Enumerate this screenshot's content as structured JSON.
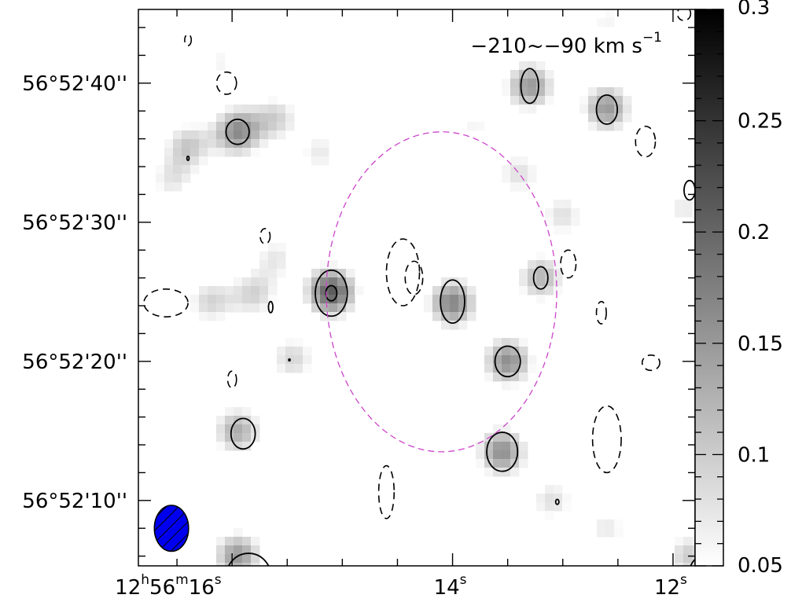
{
  "chart_data": {
    "type": "heatmap",
    "title": "",
    "velocity_label": "−210~−90 km s",
    "velocity_unit_exp": "−1",
    "axes": {
      "ra": {
        "ticks": [
          {
            "value": 16,
            "h": "12",
            "m": "56",
            "s": "16",
            "full": true
          },
          {
            "value": 14,
            "s": "14",
            "full": false
          },
          {
            "value": 12,
            "s": "12",
            "full": false
          }
        ],
        "range": [
          16.85,
          11.8
        ]
      },
      "dec": {
        "ticks": [
          {
            "value": 40,
            "label": "56°52'40''"
          },
          {
            "value": 30,
            "label": "56°52'30''"
          },
          {
            "value": 20,
            "label": "56°52'20''"
          },
          {
            "value": 10,
            "label": "56°52'10''"
          }
        ],
        "range": [
          5.3,
          45.3
        ]
      }
    },
    "colorbar": {
      "ticks": [
        {
          "value": 0.3,
          "label": "0.3"
        },
        {
          "value": 0.25,
          "label": "0.25"
        },
        {
          "value": 0.2,
          "label": "0.2"
        },
        {
          "value": 0.15,
          "label": "0.15"
        },
        {
          "value": 0.1,
          "label": "0.1"
        },
        {
          "value": 0.05,
          "label": "0.05"
        }
      ],
      "range": [
        0.05,
        0.3
      ]
    },
    "emission_peaks": [
      {
        "ra": 15.95,
        "dec": 36.5,
        "peak": 0.16
      },
      {
        "ra": 16.4,
        "dec": 35.5,
        "peak": 0.1
      },
      {
        "ra": 15.6,
        "dec": 37.5,
        "peak": 0.09
      },
      {
        "ra": 15.1,
        "dec": 25.0,
        "peak": 0.21
      },
      {
        "ra": 14.0,
        "dec": 24.2,
        "peak": 0.17
      },
      {
        "ra": 13.5,
        "dec": 20.0,
        "peak": 0.16
      },
      {
        "ra": 13.3,
        "dec": 39.8,
        "peak": 0.15
      },
      {
        "ra": 12.6,
        "dec": 38.2,
        "peak": 0.15
      },
      {
        "ra": 13.2,
        "dec": 26.0,
        "peak": 0.12
      },
      {
        "ra": 13.55,
        "dec": 13.5,
        "peak": 0.16
      },
      {
        "ra": 15.95,
        "dec": 15.0,
        "peak": 0.13
      },
      {
        "ra": 15.95,
        "dec": 6.0,
        "peak": 0.15
      },
      {
        "ra": 11.85,
        "dec": 6.0,
        "peak": 0.1
      },
      {
        "ra": 16.2,
        "dec": 24.3,
        "peak": 0.09
      },
      {
        "ra": 15.8,
        "dec": 24.8,
        "peak": 0.09
      },
      {
        "ra": 15.45,
        "dec": 20.2,
        "peak": 0.09
      },
      {
        "ra": 15.6,
        "dec": 27.5,
        "peak": 0.07
      },
      {
        "ra": 13.4,
        "dec": 33.5,
        "peak": 0.08
      },
      {
        "ra": 13.0,
        "dec": 30.5,
        "peak": 0.08
      },
      {
        "ra": 13.1,
        "dec": 10.0,
        "peak": 0.08
      },
      {
        "ra": 12.6,
        "dec": 8.0,
        "peak": 0.07
      },
      {
        "ra": 13.8,
        "dec": 37.0,
        "peak": 0.06
      },
      {
        "ra": 11.9,
        "dec": 31.0,
        "peak": 0.07
      },
      {
        "ra": 12.6,
        "dec": 44.5,
        "peak": 0.06
      },
      {
        "ra": 16.55,
        "dec": 33.0,
        "peak": 0.07
      },
      {
        "ra": 15.2,
        "dec": 35.0,
        "peak": 0.07
      },
      {
        "ra": 16.1,
        "dec": 41.5,
        "peak": 0.06
      }
    ],
    "positive_contours": [
      {
        "ra": 15.1,
        "dec": 24.9,
        "rx": 0.145,
        "ry": 1.65,
        "rot": 0
      },
      {
        "ra": 15.1,
        "dec": 24.9,
        "rx": 0.05,
        "ry": 0.55,
        "rot": 0
      },
      {
        "ra": 14.0,
        "dec": 24.3,
        "rx": 0.11,
        "ry": 1.55,
        "rot": 0
      },
      {
        "ra": 13.5,
        "dec": 20.0,
        "rx": 0.115,
        "ry": 1.1,
        "rot": 0
      },
      {
        "ra": 13.3,
        "dec": 39.8,
        "rx": 0.08,
        "ry": 1.25,
        "rot": 0
      },
      {
        "ra": 12.6,
        "dec": 38.1,
        "rx": 0.095,
        "ry": 1.05,
        "rot": 0
      },
      {
        "ra": 13.2,
        "dec": 26.0,
        "rx": 0.065,
        "ry": 0.8,
        "rot": 0
      },
      {
        "ra": 15.95,
        "dec": 36.5,
        "rx": 0.105,
        "ry": 0.9,
        "rot": 0
      },
      {
        "ra": 13.55,
        "dec": 13.5,
        "rx": 0.14,
        "ry": 1.4,
        "rot": 0
      },
      {
        "ra": 15.9,
        "dec": 14.8,
        "rx": 0.11,
        "ry": 1.1,
        "rot": 0
      },
      {
        "ra": 15.85,
        "dec": 4.6,
        "rx": 0.2,
        "ry": 1.6,
        "rot": 0
      },
      {
        "ra": 11.75,
        "dec": 4.8,
        "rx": 0.1,
        "ry": 1.1,
        "rot": 0
      },
      {
        "ra": 11.85,
        "dec": 32.3,
        "rx": 0.05,
        "ry": 0.7,
        "rot": 0
      },
      {
        "ra": 15.65,
        "dec": 23.9,
        "rx": 0.02,
        "ry": 0.4,
        "rot": 0
      },
      {
        "ra": 16.4,
        "dec": 34.6,
        "rx": 0.01,
        "ry": 0.15,
        "rot": 0
      },
      {
        "ra": 15.48,
        "dec": 20.1,
        "rx": 0.007,
        "ry": 0.07,
        "rot": 0
      },
      {
        "ra": 13.05,
        "dec": 9.9,
        "rx": 0.015,
        "ry": 0.18,
        "rot": 0
      }
    ],
    "negative_contours": [
      {
        "ra": 14.45,
        "dec": 26.4,
        "rx": 0.15,
        "ry": 2.4,
        "rot": 0
      },
      {
        "ra": 14.35,
        "dec": 26.0,
        "rx": 0.08,
        "ry": 1.2,
        "rot": 0
      },
      {
        "ra": 16.6,
        "dec": 24.2,
        "rx": 0.2,
        "ry": 1.0,
        "rot": 0
      },
      {
        "ra": 16.05,
        "dec": 40.0,
        "rx": 0.09,
        "ry": 0.8,
        "rot": 0
      },
      {
        "ra": 12.25,
        "dec": 35.8,
        "rx": 0.09,
        "ry": 1.1,
        "rot": 0
      },
      {
        "ra": 15.7,
        "dec": 29.0,
        "rx": 0.045,
        "ry": 0.55,
        "rot": 0
      },
      {
        "ra": 12.95,
        "dec": 27.0,
        "rx": 0.07,
        "ry": 1.0,
        "rot": 0
      },
      {
        "ra": 12.65,
        "dec": 23.5,
        "rx": 0.045,
        "ry": 0.8,
        "rot": 0
      },
      {
        "ra": 12.2,
        "dec": 19.9,
        "rx": 0.08,
        "ry": 0.55,
        "rot": 0
      },
      {
        "ra": 12.6,
        "dec": 14.4,
        "rx": 0.13,
        "ry": 2.4,
        "rot": 0
      },
      {
        "ra": 14.6,
        "dec": 10.6,
        "rx": 0.07,
        "ry": 1.9,
        "rot": 0
      },
      {
        "ra": 16.0,
        "dec": 18.7,
        "rx": 0.04,
        "ry": 0.6,
        "rot": 0
      },
      {
        "ra": 16.4,
        "dec": 43.1,
        "rx": 0.03,
        "ry": 0.4,
        "rot": 0
      },
      {
        "ra": 11.9,
        "dec": 45.0,
        "rx": 0.06,
        "ry": 0.5,
        "rot": 0
      }
    ],
    "primary_beam": {
      "ra": 14.1,
      "dec": 25.0,
      "rx": 1.045,
      "ry": 11.5,
      "color": "#cc44cc"
    },
    "synthesized_beam": {
      "ra": 16.55,
      "dec": 8.0,
      "rx": 0.155,
      "ry": 1.65,
      "fill": "#0000ee",
      "hatch": "#000000"
    },
    "colors": {
      "frame": "#000000",
      "contour": "#000000"
    }
  }
}
